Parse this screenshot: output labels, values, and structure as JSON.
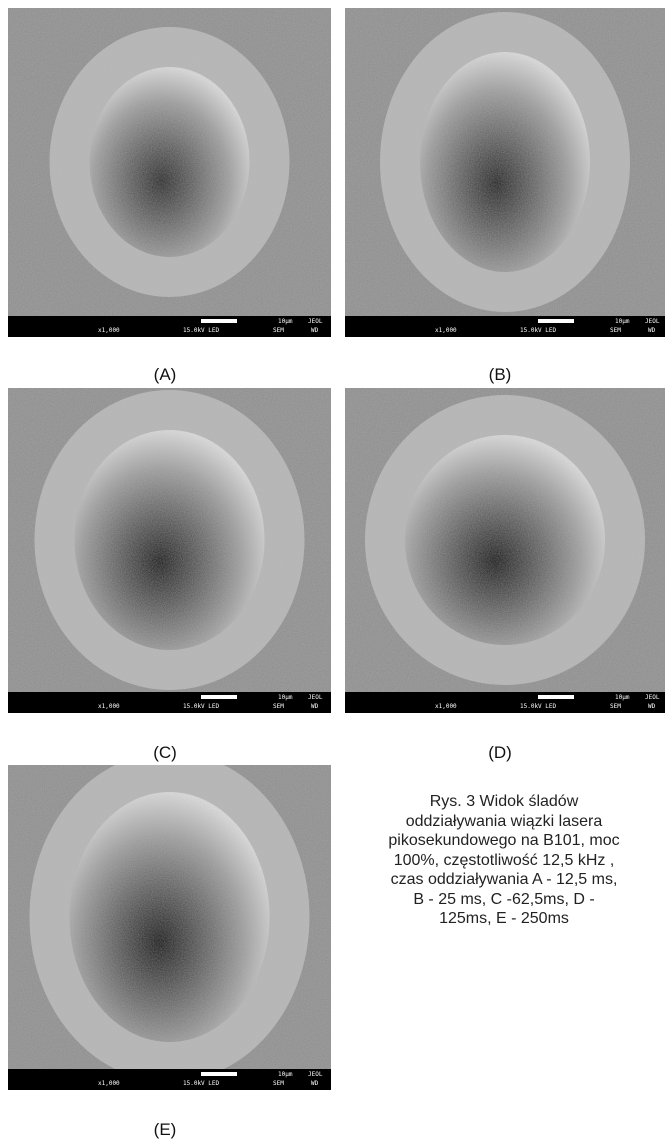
{
  "figure": {
    "panels": [
      {
        "label": "(A)"
      },
      {
        "label": "(B)"
      },
      {
        "label": "(C)"
      },
      {
        "label": "(D)"
      },
      {
        "label": "(E)"
      }
    ],
    "scale_bar": {
      "magnification": "x1,000",
      "voltage": "15.0kV LED",
      "length": "10µm",
      "maker": "JEOL",
      "mode": "SEM",
      "wd": "WD"
    },
    "caption_lines": [
      "Rys. 3 Widok śladów",
      "oddziaływania wiązki lasera",
      "pikosekundowego na B101, moc",
      "100%, częstotliwość 12,5 kHz ,",
      "czas oddziaływania A - 12,5 ms,",
      "B - 25 ms, C -62,5ms, D -",
      "125ms, E - 250ms"
    ]
  }
}
